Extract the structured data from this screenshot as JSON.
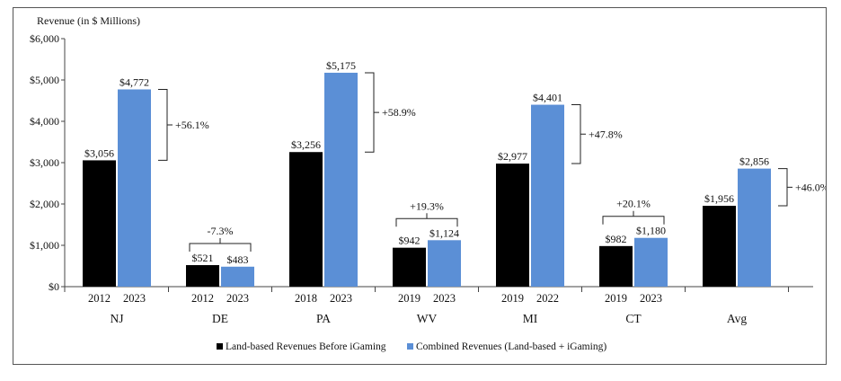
{
  "chart_data": {
    "type": "bar",
    "ylabel": "Revenue (in $ Millions)",
    "ylim": [
      0,
      6000
    ],
    "yticks": [
      "$0",
      "$1,000",
      "$2,000",
      "$3,000",
      "$4,000",
      "$5,000",
      "$6,000"
    ],
    "grid": false,
    "legend_position": "bottom",
    "series_colors": [
      "#000000",
      "#5b8fd6"
    ],
    "series": [
      {
        "name": "Land-based Revenues Before iGaming"
      },
      {
        "name": "Combined Revenues (Land-based + iGaming)"
      }
    ],
    "groups": [
      {
        "state": "NJ",
        "years": [
          "2012",
          "2023"
        ],
        "values": [
          3056,
          4772
        ],
        "labels": [
          "$3,056",
          "$4,772"
        ],
        "change": "+56.1%",
        "bracket": "side"
      },
      {
        "state": "DE",
        "years": [
          "2012",
          "2023"
        ],
        "values": [
          521,
          483
        ],
        "labels": [
          "$521",
          "$483"
        ],
        "change": "-7.3%",
        "bracket": "top"
      },
      {
        "state": "PA",
        "years": [
          "2018",
          "2023"
        ],
        "values": [
          3256,
          5175
        ],
        "labels": [
          "$3,256",
          "$5,175"
        ],
        "change": "+58.9%",
        "bracket": "side"
      },
      {
        "state": "WV",
        "years": [
          "2019",
          "2023"
        ],
        "values": [
          942,
          1124
        ],
        "labels": [
          "$942",
          "$1,124"
        ],
        "change": "+19.3%",
        "bracket": "top"
      },
      {
        "state": "MI",
        "years": [
          "2019",
          "2022"
        ],
        "values": [
          2977,
          4401
        ],
        "labels": [
          "$2,977",
          "$4,401"
        ],
        "change": "+47.8%",
        "bracket": "side"
      },
      {
        "state": "CT",
        "years": [
          "2019",
          "2023"
        ],
        "values": [
          982,
          1180
        ],
        "labels": [
          "$982",
          "$1,180"
        ],
        "change": "+20.1%",
        "bracket": "top"
      },
      {
        "state": "Avg",
        "years": [
          "",
          ""
        ],
        "values": [
          1956,
          2856
        ],
        "labels": [
          "$1,956",
          "$2,856"
        ],
        "change": "+46.0%",
        "bracket": "side"
      }
    ]
  }
}
